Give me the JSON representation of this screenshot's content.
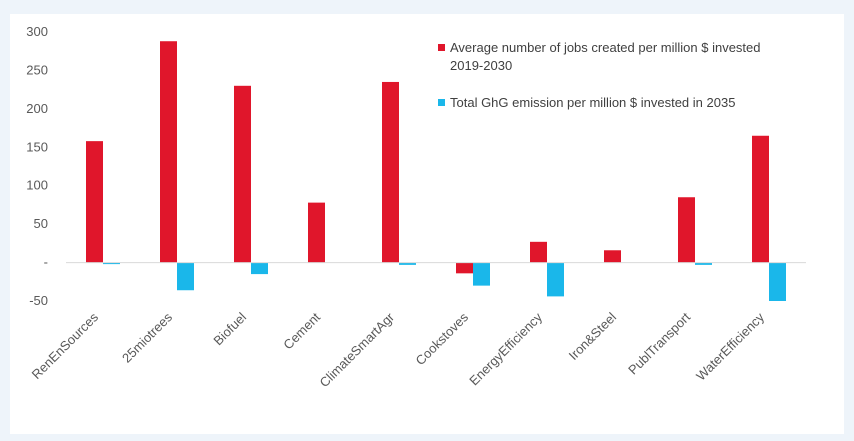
{
  "chart_data": {
    "type": "bar",
    "categories": [
      "RenEnSources",
      "25miotrees",
      "Biofuel",
      "Cement",
      "ClimateSmartAgr",
      "Cookstoves",
      "EnergyEfficiency",
      "Iron&Steel",
      "PublTransport",
      "WaterEfficiency"
    ],
    "series": [
      {
        "name": "Average number of jobs created per million $ invested 2019-2030",
        "legend_lines": [
          "Average number of jobs created per million $ invested",
          "2019-2030"
        ],
        "color": "#e0162b",
        "values": [
          158,
          288,
          230,
          78,
          235,
          -14,
          27,
          16,
          85,
          165
        ]
      },
      {
        "name": "Total GhG emission per million $ invested in 2035",
        "legend_lines": [
          "Total GhG emission per million $ invested in 2035"
        ],
        "color": "#1ab7ea",
        "values": [
          -2,
          -36,
          -15,
          0,
          -3,
          -30,
          -44,
          0,
          -3,
          -50
        ]
      }
    ],
    "ylim": [
      -50,
      300
    ],
    "yticks": [
      300,
      250,
      200,
      150,
      100,
      50,
      0,
      -50
    ],
    "ytick_labels": [
      "300",
      "250",
      "200",
      "150",
      "100",
      "50",
      "-",
      "-50"
    ],
    "legend_position": "top-right",
    "grid": false
  }
}
